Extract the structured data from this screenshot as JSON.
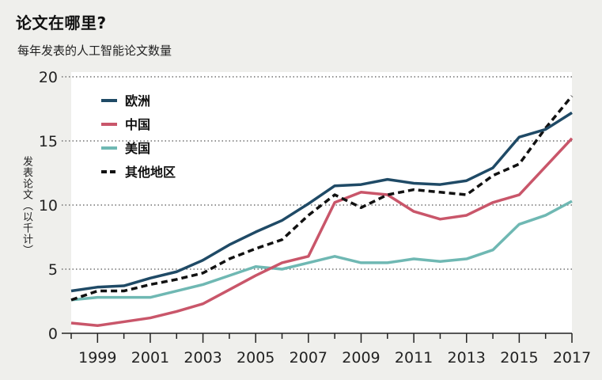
{
  "chart_data": {
    "type": "line",
    "title": "论文在哪里?",
    "subtitle": "每年发表的人工智能论文数量",
    "xlabel": "",
    "ylabel": "发表论文（以千计）",
    "ylim": [
      0,
      20
    ],
    "xlim": [
      1998,
      2017
    ],
    "yticks": [
      0,
      5,
      10,
      15,
      20
    ],
    "xtick_labels": [
      "1999",
      "2001",
      "2003",
      "2005",
      "2007",
      "2009",
      "2011",
      "2013",
      "2015",
      "2017"
    ],
    "grid": "horizontal-dotted",
    "legend_position": "top-left",
    "x": [
      1998,
      1999,
      2000,
      2001,
      2002,
      2003,
      2004,
      2005,
      2006,
      2007,
      2008,
      2009,
      2010,
      2011,
      2012,
      2013,
      2014,
      2015,
      2016,
      2017
    ],
    "series": [
      {
        "name": "欧洲",
        "color": "#1f4a66",
        "style": "solid",
        "values": [
          3.3,
          3.6,
          3.7,
          4.3,
          4.8,
          5.7,
          6.9,
          7.9,
          8.8,
          10.1,
          11.5,
          11.6,
          12.0,
          11.7,
          11.6,
          11.9,
          12.9,
          15.3,
          15.9,
          17.2
        ]
      },
      {
        "name": "中国",
        "color": "#c9566a",
        "style": "solid",
        "values": [
          0.8,
          0.6,
          0.9,
          1.2,
          1.7,
          2.3,
          3.4,
          4.5,
          5.5,
          6.0,
          10.2,
          11.0,
          10.8,
          9.5,
          8.9,
          9.2,
          10.2,
          10.8,
          13.0,
          15.2
        ]
      },
      {
        "name": "美国",
        "color": "#6fb8b3",
        "style": "solid",
        "values": [
          2.6,
          2.8,
          2.8,
          2.8,
          3.3,
          3.8,
          4.5,
          5.2,
          5.0,
          5.5,
          6.0,
          5.5,
          5.5,
          5.8,
          5.6,
          5.8,
          6.5,
          8.5,
          9.2,
          10.3
        ]
      },
      {
        "name": "其他地区",
        "color": "#111111",
        "style": "dashed",
        "values": [
          2.6,
          3.3,
          3.3,
          3.8,
          4.2,
          4.7,
          5.8,
          6.6,
          7.3,
          9.2,
          10.8,
          9.8,
          10.8,
          11.2,
          11.0,
          10.8,
          12.3,
          13.2,
          16.0,
          18.5
        ]
      }
    ]
  }
}
